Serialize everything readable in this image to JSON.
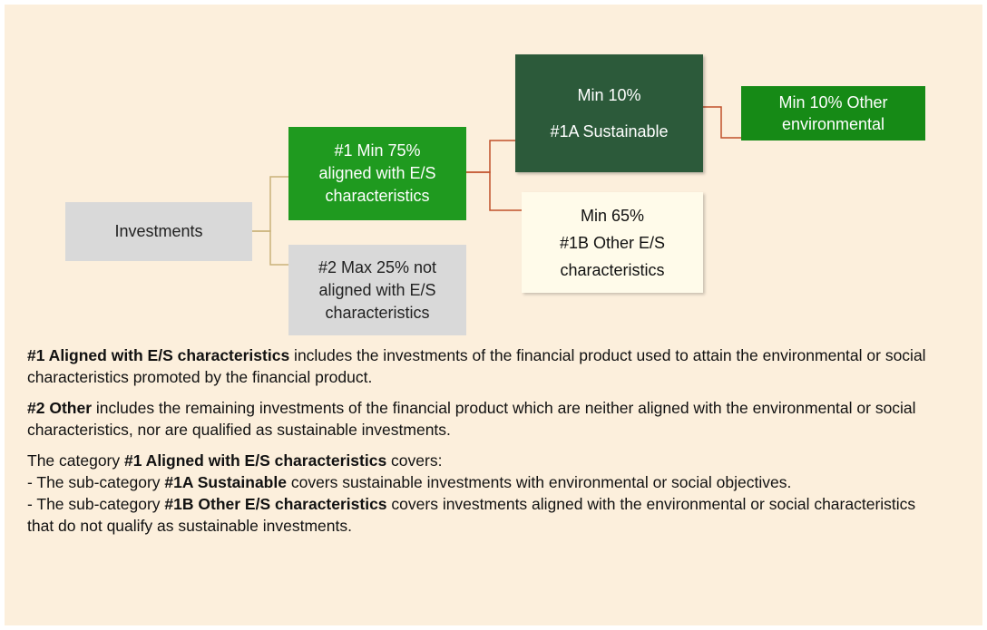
{
  "nodes": {
    "investments": {
      "lines": [
        "Investments"
      ]
    },
    "aligned": {
      "lines": [
        "#1 Min 75%",
        "aligned with E/S",
        "characteristics"
      ]
    },
    "other": {
      "lines": [
        "#2 Max 25% not",
        "aligned with E/S",
        "characteristics"
      ]
    },
    "sustainable": {
      "lines": [
        "Min 10%",
        "#1A Sustainable"
      ]
    },
    "other_es": {
      "lines": [
        "Min 65%",
        "#1B Other E/S",
        "characteristics"
      ]
    },
    "other_env": {
      "lines": [
        "Min 10% Other",
        "environmental"
      ]
    }
  },
  "notes": [
    [
      {
        "text": "#1 Aligned with E/S characteristics",
        "bold": true
      },
      {
        "text": " includes the investments of the financial product used to attain the environmental or social characteristics promoted by the financial product.",
        "bold": false
      }
    ],
    [
      {
        "text": "#2 Other",
        "bold": true
      },
      {
        "text": " includes the remaining investments of the financial product which are neither aligned with the environmental or social characteristics, nor are qualified as sustainable investments.",
        "bold": false
      }
    ],
    [
      {
        "text": "The category ",
        "bold": false
      },
      {
        "text": "#1 Aligned with E/S characteristics",
        "bold": true
      },
      {
        "text": " covers:",
        "bold": false
      }
    ],
    [
      {
        "text": "- The sub-category ",
        "bold": false
      },
      {
        "text": "#1A Sustainable",
        "bold": true
      },
      {
        "text": " covers sustainable investments with environmental or social objectives.",
        "bold": false
      }
    ],
    [
      {
        "text": "- The sub-category ",
        "bold": false
      },
      {
        "text": "#1B Other E/S characteristics",
        "bold": true
      },
      {
        "text": " covers investments aligned with the environmental or social characteristics that do not qualify as sustainable investments.",
        "bold": false
      }
    ]
  ]
}
